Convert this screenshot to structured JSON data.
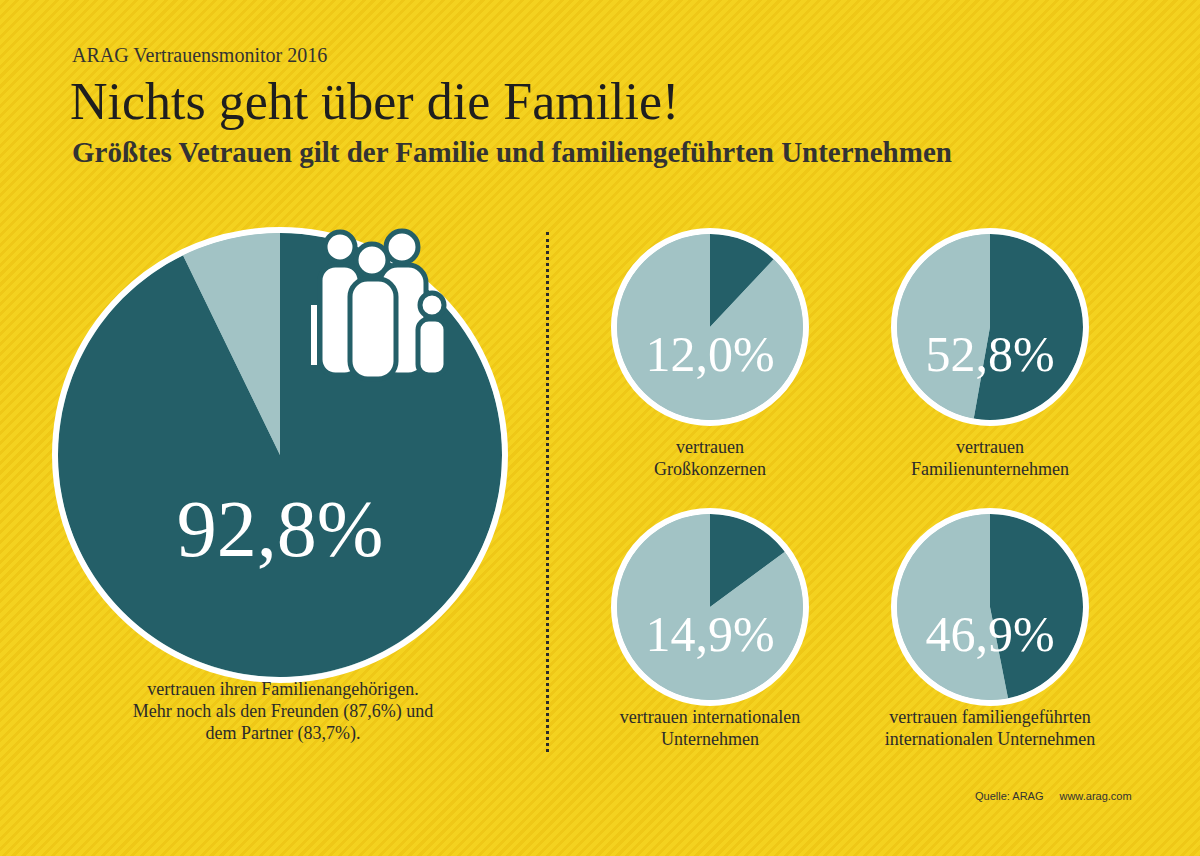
{
  "header": "ARAG Vertrauensmonitor 2016",
  "title": "Nichts geht über die Familie!",
  "subtitle": "Größtes Vetrauen gilt der Familie und familiengeführten Unternehmen",
  "source": "Quelle: ARAG",
  "url": "www.arag.com",
  "chart_data": [
    {
      "type": "pie",
      "caption": [
        "vertrauen ihren Familienangehörigen.",
        "Mehr noch als den Freunden (87,6%) und",
        "dem Partner (83,7%)."
      ],
      "values": [
        92.8,
        7.2
      ],
      "value_labels": [
        "92,8%",
        null
      ],
      "colors": [
        "#245f68",
        "#a2c3c5"
      ],
      "data_labels": true
    },
    {
      "type": "pie",
      "caption": [
        "vertrauen",
        "Großkonzernen"
      ],
      "values": [
        12.0,
        88.0
      ],
      "value_labels": [
        "12,0%",
        null
      ],
      "colors": [
        "#245f68",
        "#a2c3c5"
      ],
      "data_labels": true
    },
    {
      "type": "pie",
      "caption": [
        "vertrauen",
        "Familienunternehmen"
      ],
      "values": [
        52.8,
        47.2
      ],
      "value_labels": [
        "52,8%",
        null
      ],
      "colors": [
        "#245f68",
        "#a2c3c5"
      ],
      "data_labels": true
    },
    {
      "type": "pie",
      "caption": [
        "vertrauen internationalen",
        "Unternehmen"
      ],
      "values": [
        14.9,
        85.1
      ],
      "value_labels": [
        "14,9%",
        null
      ],
      "colors": [
        "#245f68",
        "#a2c3c5"
      ],
      "data_labels": true
    },
    {
      "type": "pie",
      "caption": [
        "vertrauen familiengeführten",
        "internationalen Unternehmen"
      ],
      "values": [
        46.9,
        53.1
      ],
      "value_labels": [
        "46,9%",
        null
      ],
      "colors": [
        "#245f68",
        "#a2c3c5"
      ],
      "data_labels": true
    }
  ]
}
